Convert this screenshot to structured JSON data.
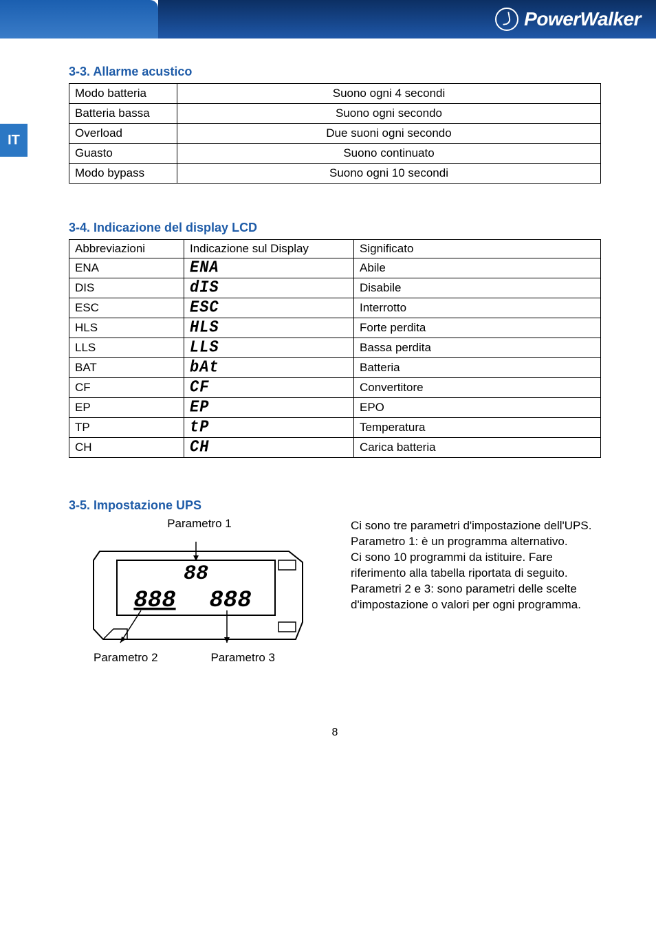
{
  "side_tab": "IT",
  "logo_text": "PowerWalker",
  "colors": {
    "heading": "#1f5ca8",
    "side_tab_bg": "#2b77c4",
    "header_start": "#0c2f63",
    "header_end": "#1e57a8",
    "header_left_start": "#1b5fb0",
    "header_left_end": "#3a7cc8",
    "border": "#000000",
    "text": "#000000",
    "logo": "#ffffff"
  },
  "section33": {
    "title": "3-3. Allarme acustico",
    "rows": [
      [
        "Modo batteria",
        "Suono ogni 4 secondi"
      ],
      [
        "Batteria bassa",
        "Suono ogni secondo"
      ],
      [
        "Overload",
        "Due suoni ogni secondo"
      ],
      [
        "Guasto",
        "Suono continuato"
      ],
      [
        "Modo bypass",
        "Suono ogni 10 secondi"
      ]
    ]
  },
  "section34": {
    "title": "3-4. Indicazione del display LCD",
    "headers": [
      "Abbreviazioni",
      "Indicazione sul Display",
      "Significato"
    ],
    "rows": [
      {
        "abbr": "ENA",
        "disp": "ENA",
        "meaning": "Abile"
      },
      {
        "abbr": "DIS",
        "disp": "dIS",
        "meaning": "Disabile"
      },
      {
        "abbr": "ESC",
        "disp": "ESC",
        "meaning": "Interrotto"
      },
      {
        "abbr": "HLS",
        "disp": "HLS",
        "meaning": "Forte perdita"
      },
      {
        "abbr": "LLS",
        "disp": "LLS",
        "meaning": "Bassa perdita"
      },
      {
        "abbr": "BAT",
        "disp": "bAt",
        "meaning": "Batteria"
      },
      {
        "abbr": "CF",
        "disp": "CF",
        "meaning": "Convertitore"
      },
      {
        "abbr": "EP",
        "disp": "EP",
        "meaning": "EPO"
      },
      {
        "abbr": "TP",
        "disp": "tP",
        "meaning": "Temperatura"
      },
      {
        "abbr": "CH",
        "disp": "CH",
        "meaning": "Carica batteria"
      }
    ]
  },
  "section35": {
    "title": "3-5. Impostazione UPS",
    "label_p1": "Parametro 1",
    "label_p2": "Parametro 2",
    "label_p3": "Parametro 3",
    "lcd_top": "88",
    "lcd_left": "888",
    "lcd_right": "888",
    "description": "Ci sono tre parametri d'impostazione dell'UPS.\nParametro 1: è un programma alternativo.\nCi sono 10 programmi da istituire. Fare riferimento alla tabella riportata di seguito.\nParametri 2 e 3: sono parametri delle scelte d'impostazione o valori per ogni programma."
  },
  "page_number": "8"
}
